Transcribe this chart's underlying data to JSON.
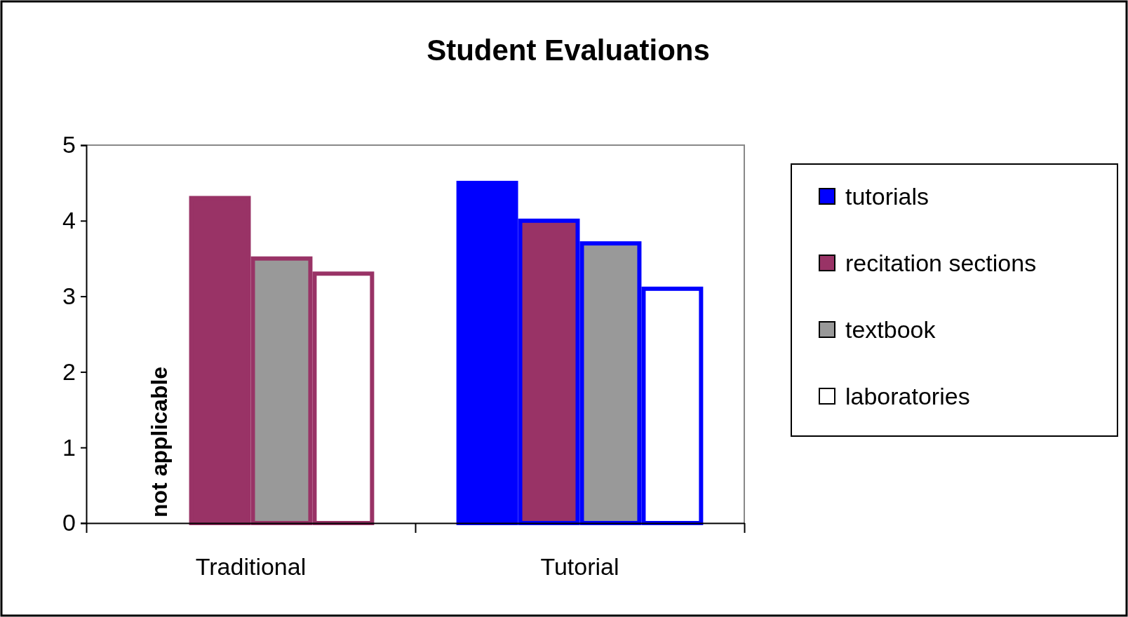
{
  "chart_data": {
    "type": "bar",
    "title": "Student Evaluations",
    "categories": [
      "Traditional",
      "Tutorial"
    ],
    "series": [
      {
        "name": "tutorials",
        "color": "#0000ff",
        "values": [
          null,
          4.5
        ]
      },
      {
        "name": "recitation sections",
        "color": "#993366",
        "values": [
          4.3,
          4.0
        ]
      },
      {
        "name": "textbook",
        "color": "#999999",
        "values": [
          3.5,
          3.7
        ]
      },
      {
        "name": "laboratories",
        "color": "#ffffff",
        "values": [
          3.3,
          3.1
        ]
      }
    ],
    "ylim": [
      0,
      5
    ],
    "yticks": [
      0,
      1,
      2,
      3,
      4,
      5
    ],
    "grid": false,
    "legend": "right",
    "annotations": [
      "not applicable"
    ]
  }
}
